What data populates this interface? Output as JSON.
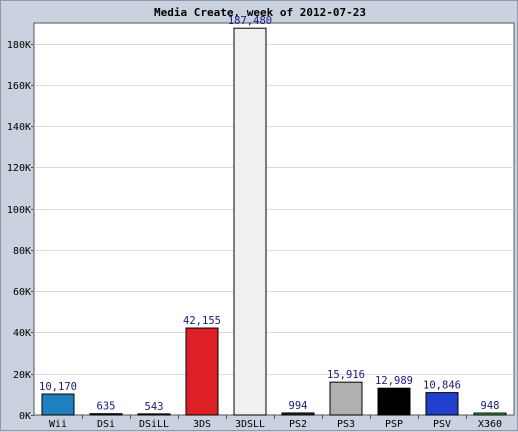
{
  "chart_data": {
    "type": "bar",
    "title": "Media Create, week of 2012-07-23",
    "xlabel": "",
    "ylabel": "",
    "categories": [
      "Wii",
      "DSi",
      "DSiLL",
      "3DS",
      "3DSLL",
      "PS2",
      "PS3",
      "PSP",
      "PSV",
      "X360"
    ],
    "values": [
      10170,
      635,
      543,
      42155,
      187480,
      994,
      15916,
      12989,
      10846,
      948
    ],
    "data_labels": [
      "10,170",
      "635",
      "543",
      "42,155",
      "187,480",
      "994",
      "15,916",
      "12,989",
      "10,846",
      "948"
    ],
    "colors": [
      "#1f7fbf",
      "#2a2a2a",
      "#2a2a2a",
      "#dd1f26",
      "#f0f0f0",
      "#2a2a2a",
      "#b0b0b0",
      "#000000",
      "#1f3fcc",
      "#3db84a"
    ],
    "ylim": [
      0,
      190000
    ],
    "yticks": [
      0,
      20000,
      40000,
      60000,
      80000,
      100000,
      120000,
      140000,
      160000,
      180000
    ],
    "ytick_labels": [
      "0K",
      "20K",
      "40K",
      "60K",
      "80K",
      "100K",
      "120K",
      "140K",
      "160K",
      "180K"
    ],
    "grid": true,
    "legend": "none"
  }
}
